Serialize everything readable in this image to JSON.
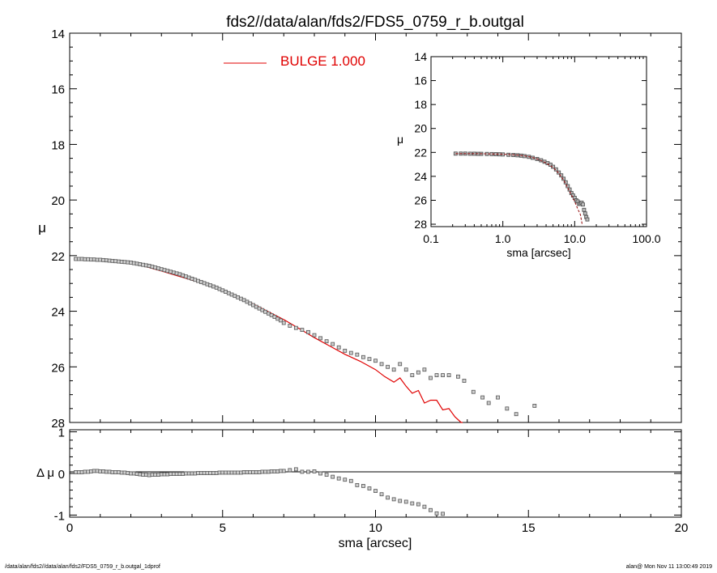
{
  "chart_data": [
    {
      "panel": "main",
      "type": "scatter",
      "title": "fds2//data/alan/fds2/FDS5_0759_r_b.outgal",
      "xlabel": "",
      "ylabel": "μ",
      "xlim": [
        0,
        20
      ],
      "ylim": [
        28,
        14
      ],
      "y_inverted": true,
      "xticks": [
        "0",
        "5",
        "10",
        "15",
        "20"
      ],
      "yticks": [
        "14",
        "16",
        "18",
        "20",
        "22",
        "24",
        "26",
        "28"
      ],
      "legend": {
        "placement": "top",
        "entries": [
          {
            "label": "BULGE  1.000",
            "color": "#e00000"
          }
        ]
      },
      "series": [
        {
          "kind": "points",
          "color": "#555555",
          "x": [
            0.2,
            0.3,
            0.4,
            0.5,
            0.6,
            0.7,
            0.8,
            0.9,
            1.0,
            1.1,
            1.2,
            1.3,
            1.4,
            1.5,
            1.6,
            1.7,
            1.8,
            1.9,
            2.0,
            2.1,
            2.2,
            2.3,
            2.4,
            2.5,
            2.6,
            2.7,
            2.8,
            2.9,
            3.0,
            3.1,
            3.2,
            3.3,
            3.4,
            3.5,
            3.6,
            3.7,
            3.8,
            3.9,
            4.0,
            4.1,
            4.2,
            4.3,
            4.4,
            4.5,
            4.6,
            4.7,
            4.8,
            4.9,
            5.0,
            5.1,
            5.2,
            5.3,
            5.4,
            5.5,
            5.6,
            5.7,
            5.8,
            5.9,
            6.0,
            6.1,
            6.2,
            6.3,
            6.4,
            6.5,
            6.6,
            6.7,
            6.8,
            6.9,
            7.0,
            7.2,
            7.4,
            7.6,
            7.8,
            8.0,
            8.2,
            8.4,
            8.6,
            8.8,
            9.0,
            9.2,
            9.4,
            9.6,
            9.8,
            10.0,
            10.2,
            10.4,
            10.6,
            10.8,
            11.0,
            11.2,
            11.4,
            11.6,
            11.8,
            12.0,
            12.2,
            12.4,
            12.7,
            12.9,
            13.2,
            13.5,
            13.7,
            14.0,
            14.3,
            14.6,
            15.2
          ],
          "y": [
            22.12,
            22.12,
            22.12,
            22.13,
            22.13,
            22.14,
            22.14,
            22.15,
            22.15,
            22.16,
            22.17,
            22.18,
            22.19,
            22.2,
            22.21,
            22.22,
            22.23,
            22.24,
            22.25,
            22.27,
            22.29,
            22.31,
            22.33,
            22.35,
            22.37,
            22.4,
            22.43,
            22.46,
            22.49,
            22.52,
            22.55,
            22.58,
            22.61,
            22.64,
            22.67,
            22.71,
            22.75,
            22.79,
            22.83,
            22.87,
            22.91,
            22.95,
            22.99,
            23.03,
            23.07,
            23.11,
            23.15,
            23.2,
            23.25,
            23.3,
            23.35,
            23.4,
            23.45,
            23.5,
            23.55,
            23.6,
            23.66,
            23.72,
            23.78,
            23.84,
            23.9,
            23.96,
            24.02,
            24.08,
            24.14,
            24.2,
            24.27,
            24.33,
            24.42,
            24.52,
            24.6,
            24.67,
            24.75,
            24.86,
            24.97,
            25.08,
            25.18,
            25.3,
            25.42,
            25.5,
            25.56,
            25.65,
            25.72,
            25.78,
            25.9,
            26.0,
            26.1,
            25.9,
            26.1,
            26.3,
            26.2,
            26.1,
            26.4,
            26.3,
            26.3,
            26.3,
            26.35,
            26.5,
            26.9,
            27.1,
            27.3,
            27.1,
            27.5,
            27.7,
            27.4
          ]
        },
        {
          "kind": "line",
          "name": "BULGE  1.000",
          "color": "#e00000",
          "x": [
            0.2,
            0.5,
            1.0,
            1.5,
            2.0,
            2.5,
            3.0,
            3.5,
            4.0,
            4.5,
            5.0,
            5.5,
            6.0,
            6.5,
            7.0,
            7.5,
            8.0,
            8.5,
            9.0,
            9.5,
            10.0,
            10.3,
            10.6,
            10.8,
            11.0,
            11.2,
            11.4,
            11.6,
            11.8,
            12.0,
            12.2,
            12.4,
            12.6,
            12.8,
            12.85
          ],
          "y": [
            22.1,
            22.11,
            22.14,
            22.2,
            22.28,
            22.4,
            22.55,
            22.72,
            22.88,
            23.05,
            23.25,
            23.48,
            23.74,
            24.02,
            24.3,
            24.62,
            24.95,
            25.25,
            25.55,
            25.8,
            26.1,
            26.35,
            26.55,
            26.4,
            26.7,
            26.95,
            26.85,
            27.3,
            27.2,
            27.2,
            27.55,
            27.5,
            27.8,
            28.0,
            28.1
          ]
        }
      ]
    },
    {
      "panel": "residual",
      "type": "scatter",
      "xlabel": "sma [arcsec]",
      "ylabel": "Δ μ",
      "xlim": [
        0,
        20
      ],
      "ylim": [
        -1.05,
        1.05
      ],
      "xticks": [
        "0",
        "5",
        "10",
        "15",
        "20"
      ],
      "yticks": [
        "1",
        "0",
        "-1"
      ],
      "zero_line": true,
      "series": [
        {
          "kind": "points",
          "color": "#555555",
          "x": [
            0.2,
            0.3,
            0.4,
            0.5,
            0.6,
            0.7,
            0.8,
            0.9,
            1.0,
            1.1,
            1.2,
            1.3,
            1.4,
            1.5,
            1.6,
            1.7,
            1.8,
            1.9,
            2.0,
            2.1,
            2.2,
            2.3,
            2.4,
            2.5,
            2.6,
            2.7,
            2.8,
            2.9,
            3.0,
            3.1,
            3.2,
            3.3,
            3.4,
            3.5,
            3.6,
            3.7,
            3.8,
            3.9,
            4.0,
            4.1,
            4.2,
            4.3,
            4.4,
            4.5,
            4.6,
            4.7,
            4.8,
            4.9,
            5.0,
            5.1,
            5.2,
            5.3,
            5.4,
            5.5,
            5.6,
            5.7,
            5.8,
            5.9,
            6.0,
            6.1,
            6.2,
            6.3,
            6.4,
            6.5,
            6.6,
            6.7,
            6.8,
            6.9,
            7.0,
            7.2,
            7.4,
            7.6,
            7.8,
            8.0,
            8.2,
            8.4,
            8.6,
            8.8,
            9.0,
            9.2,
            9.4,
            9.6,
            9.8,
            10.0,
            10.2,
            10.4,
            10.6,
            10.8,
            11.0,
            11.2,
            11.4,
            11.6,
            11.8,
            12.0,
            12.2
          ],
          "y": [
            0.03,
            0.03,
            0.03,
            0.04,
            0.04,
            0.05,
            0.06,
            0.06,
            0.05,
            0.05,
            0.04,
            0.04,
            0.03,
            0.03,
            0.03,
            0.02,
            0.02,
            0.01,
            0.0,
            0.0,
            -0.01,
            -0.02,
            -0.03,
            -0.03,
            -0.04,
            -0.03,
            -0.03,
            -0.03,
            -0.02,
            -0.02,
            -0.02,
            -0.01,
            -0.01,
            -0.01,
            -0.01,
            -0.01,
            0.0,
            0.0,
            0.0,
            0.0,
            0.01,
            0.01,
            0.01,
            0.01,
            0.01,
            0.01,
            0.01,
            0.02,
            0.02,
            0.02,
            0.02,
            0.02,
            0.02,
            0.02,
            0.02,
            0.03,
            0.03,
            0.03,
            0.03,
            0.03,
            0.03,
            0.04,
            0.04,
            0.04,
            0.05,
            0.05,
            0.05,
            0.06,
            0.06,
            0.08,
            0.1,
            0.04,
            0.04,
            0.05,
            0.0,
            -0.03,
            -0.08,
            -0.12,
            -0.15,
            -0.18,
            -0.28,
            -0.3,
            -0.36,
            -0.42,
            -0.5,
            -0.58,
            -0.62,
            -0.66,
            -0.68,
            -0.72,
            -0.74,
            -0.8,
            -0.88,
            -0.96,
            -0.97
          ]
        }
      ]
    },
    {
      "panel": "inset",
      "type": "scatter",
      "xlabel": "sma [arcsec]",
      "ylabel": "μ",
      "xscale": "log",
      "xlim": [
        0.1,
        100
      ],
      "ylim": [
        28.2,
        14
      ],
      "y_inverted": true,
      "xticks": [
        "0.1",
        "1.0",
        "10.0",
        "100.0"
      ],
      "yticks": [
        "14",
        "16",
        "18",
        "20",
        "22",
        "24",
        "26",
        "28"
      ],
      "series": [
        {
          "kind": "points",
          "color": "#555555",
          "x": [
            0.22,
            0.26,
            0.3,
            0.35,
            0.4,
            0.45,
            0.5,
            0.6,
            0.7,
            0.8,
            0.9,
            1.0,
            1.2,
            1.4,
            1.6,
            1.8,
            2.0,
            2.3,
            2.6,
            3.0,
            3.4,
            3.8,
            4.2,
            4.6,
            5.0,
            5.5,
            6.0,
            6.5,
            7.0,
            7.5,
            8.0,
            8.5,
            9.0,
            9.5,
            10.0,
            10.5,
            11.0,
            11.5,
            12.0,
            12.5,
            13.0,
            13.5,
            14.0,
            14.5,
            15.0
          ],
          "y": [
            22.1,
            22.1,
            22.1,
            22.11,
            22.11,
            22.12,
            22.12,
            22.13,
            22.14,
            22.15,
            22.16,
            22.17,
            22.2,
            22.22,
            22.24,
            22.27,
            22.31,
            22.37,
            22.45,
            22.55,
            22.66,
            22.78,
            22.9,
            23.03,
            23.2,
            23.42,
            23.68,
            23.92,
            24.2,
            24.5,
            24.82,
            25.1,
            25.4,
            25.6,
            25.8,
            26.0,
            26.1,
            26.3,
            26.3,
            26.2,
            26.35,
            26.8,
            27.1,
            27.4,
            27.6
          ]
        },
        {
          "kind": "line",
          "style": "dashed",
          "color": "#9a1a1a",
          "x": [
            0.22,
            0.3,
            0.5,
            0.8,
            1.0,
            1.5,
            2.0,
            2.5,
            3.0,
            3.5,
            4.0,
            5.0,
            6.0,
            7.0,
            8.0,
            9.0,
            10.0,
            11.0,
            12.0,
            12.8
          ],
          "y": [
            22.1,
            22.1,
            22.11,
            22.14,
            22.15,
            22.2,
            22.28,
            22.4,
            22.55,
            22.72,
            22.88,
            23.25,
            23.74,
            24.3,
            24.95,
            25.55,
            26.1,
            26.7,
            27.2,
            28.1
          ]
        }
      ]
    }
  ],
  "footer": {
    "left": "/data/alan/fds2//data/alan/fds2/FDS5_0759_r_b.outgal_1dprof",
    "right": "alan@  Mon Nov 11 13:00:49 2019"
  }
}
